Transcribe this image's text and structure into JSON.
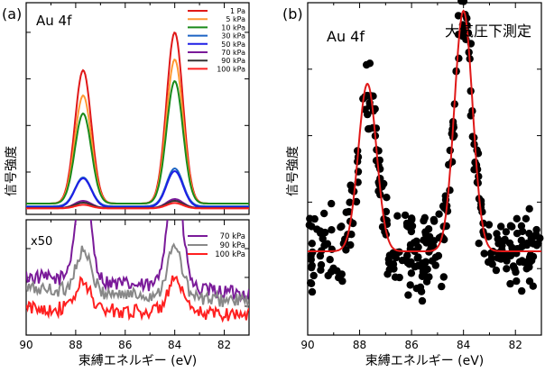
{
  "figure": {
    "panel_a_label": "(a)",
    "panel_b_label": "(b)"
  },
  "chart_data": [
    {
      "panel": "(a) top",
      "type": "line",
      "annotation": "Au 4f",
      "xlabel": "束縛エネルギー (eV)",
      "ylabel": "信号強度",
      "xlim": [
        90,
        81
      ],
      "x_reversed": true,
      "xticks": [
        "90",
        "88",
        "86",
        "84",
        "82"
      ],
      "ylim": [
        0,
        1
      ],
      "legend_position": "top-right",
      "peak_positions": [
        87.7,
        84.0
      ],
      "series": [
        {
          "name": "1 Pa",
          "color": "#e01818",
          "peak1": 0.74,
          "peak2": 0.95,
          "baseline": 0.03
        },
        {
          "name": "5 kPa",
          "color": "#ff9933",
          "peak1": 0.6,
          "peak2": 0.8,
          "baseline": 0.03
        },
        {
          "name": "10 kPa",
          "color": "#1a8a1a",
          "peak1": 0.5,
          "peak2": 0.68,
          "baseline": 0.03
        },
        {
          "name": "30 kPa",
          "color": "#1c63c4",
          "peak1": 0.16,
          "peak2": 0.21,
          "baseline": 0.015
        },
        {
          "name": "50 kPa",
          "color": "#1e1ee6",
          "peak1": 0.16,
          "peak2": 0.2,
          "baseline": 0.01
        },
        {
          "name": "70 kPa",
          "color": "#7a1a99",
          "peak1": 0.04,
          "peak2": 0.05,
          "baseline": 0.005
        },
        {
          "name": "90 kPa",
          "color": "#333333",
          "peak1": 0.03,
          "peak2": 0.04,
          "baseline": 0.005
        },
        {
          "name": "100 kPa",
          "color": "#ff2020",
          "peak1": 0.02,
          "peak2": 0.03,
          "baseline": 0.003
        }
      ]
    },
    {
      "panel": "(a) bottom",
      "type": "line",
      "annotation": "x50",
      "xlabel": "束縛エネルギー (eV)",
      "xlim": [
        90,
        81
      ],
      "x_reversed": true,
      "xticks": [
        "90",
        "88",
        "86",
        "84",
        "82"
      ],
      "ylim": [
        0,
        1
      ],
      "legend_position": "top-right",
      "series": [
        {
          "name": "70 kPa",
          "color": "#7a1a99",
          "peak1": 1.1,
          "peak2": 1.3,
          "baseline": 0.55
        },
        {
          "name": "90 kPa",
          "color": "#888888",
          "peak1": 0.45,
          "peak2": 0.55,
          "baseline": 0.42
        },
        {
          "name": "100 kPa",
          "color": "#ff2020",
          "peak1": 0.3,
          "peak2": 0.35,
          "baseline": 0.2
        }
      ]
    },
    {
      "panel": "(b)",
      "type": "scatter",
      "annotation": "Au 4f",
      "condition_label": "大気圧下測定",
      "xlabel": "束縛エネルギー (eV)",
      "ylabel": "信号強度",
      "xlim": [
        90,
        81
      ],
      "x_reversed": true,
      "xticks": [
        "90",
        "88",
        "86",
        "84",
        "82"
      ],
      "ylim": [
        0,
        1
      ],
      "fit_color": "#e01818",
      "points_color": "#000000",
      "fit": {
        "baseline": 0.26,
        "peak1_center": 87.7,
        "peak1_height": 0.62,
        "peak2_center": 84.0,
        "peak2_height": 0.89,
        "sigma": 0.35
      }
    }
  ]
}
